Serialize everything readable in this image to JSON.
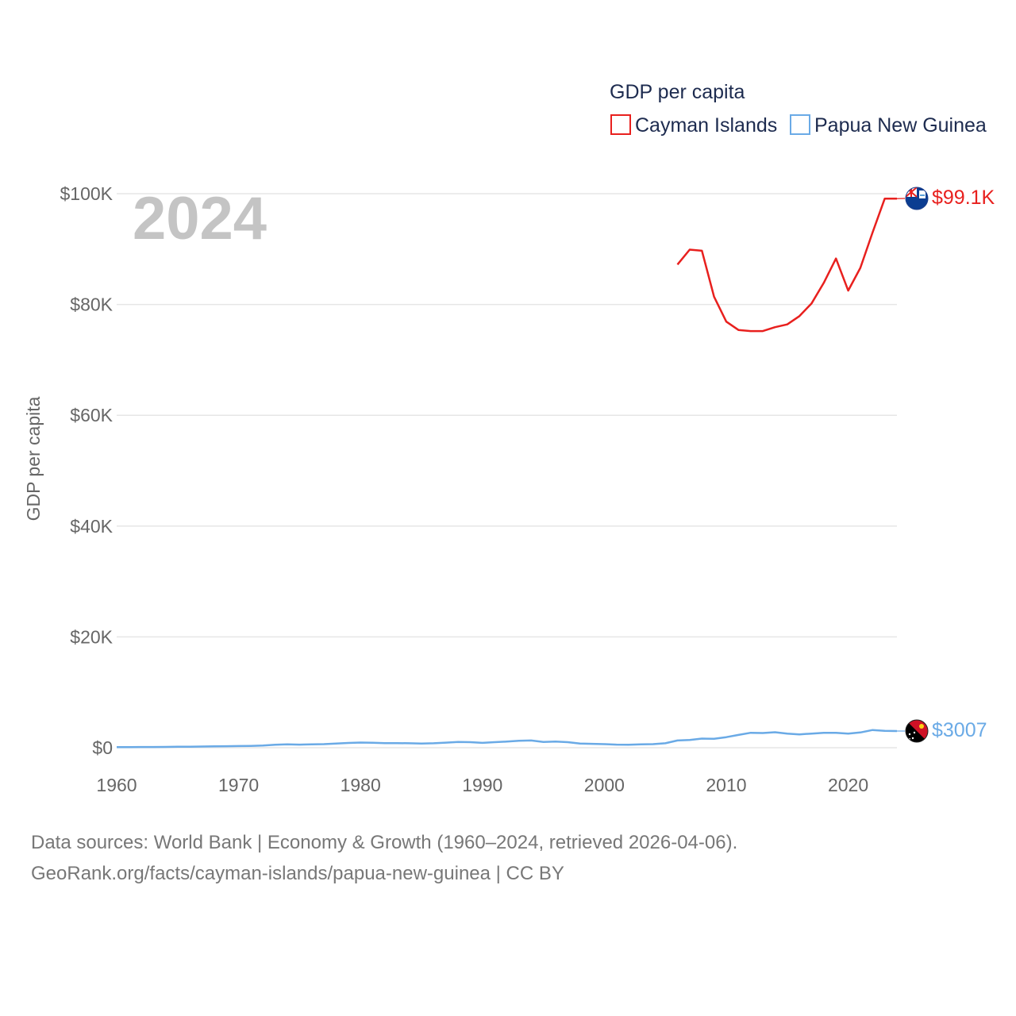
{
  "chart_data": {
    "type": "line",
    "legend_title": "GDP per capita",
    "ylabel": "GDP per capita",
    "xlabel": "",
    "year_label": "2024",
    "xlim": [
      1960,
      2024
    ],
    "ylim": [
      0,
      100000
    ],
    "x_ticks": [
      1960,
      1970,
      1980,
      1990,
      2000,
      2010,
      2020
    ],
    "y_ticks": [
      {
        "value": 0,
        "label": "$0"
      },
      {
        "value": 20000,
        "label": "$20K"
      },
      {
        "value": 40000,
        "label": "$40K"
      },
      {
        "value": 60000,
        "label": "$60K"
      },
      {
        "value": 80000,
        "label": "$80K"
      },
      {
        "value": 100000,
        "label": "$100K"
      }
    ],
    "series": [
      {
        "name": "Cayman Islands",
        "color": "#e8201e",
        "flag_icon": "cayman-islands-flag-icon",
        "end_label": "$99.1K",
        "x": [
          2006,
          2007,
          2008,
          2009,
          2010,
          2011,
          2012,
          2013,
          2014,
          2015,
          2016,
          2017,
          2018,
          2019,
          2020,
          2021,
          2022,
          2023,
          2024
        ],
        "values": [
          87200,
          89900,
          89700,
          81400,
          76900,
          75400,
          75200,
          75200,
          75900,
          76400,
          77900,
          80200,
          83900,
          88300,
          82500,
          86600,
          93000,
          99100,
          99100
        ]
      },
      {
        "name": "Papua New Guinea",
        "color": "#6aaae6",
        "flag_icon": "papua-new-guinea-flag-icon",
        "end_label": "$3007",
        "x": [
          1960,
          1961,
          1962,
          1963,
          1964,
          1965,
          1966,
          1967,
          1968,
          1969,
          1970,
          1971,
          1972,
          1973,
          1974,
          1975,
          1976,
          1977,
          1978,
          1979,
          1980,
          1981,
          1982,
          1983,
          1984,
          1985,
          1986,
          1987,
          1988,
          1989,
          1990,
          1991,
          1992,
          1993,
          1994,
          1995,
          1996,
          1997,
          1998,
          1999,
          2000,
          2001,
          2002,
          2003,
          2004,
          2005,
          2006,
          2007,
          2008,
          2009,
          2010,
          2011,
          2012,
          2013,
          2014,
          2015,
          2016,
          2017,
          2018,
          2019,
          2020,
          2021,
          2022,
          2023,
          2024
        ],
        "values": [
          110,
          115,
          125,
          135,
          150,
          165,
          185,
          210,
          240,
          270,
          300,
          330,
          380,
          530,
          600,
          560,
          600,
          650,
          740,
          860,
          930,
          900,
          820,
          830,
          800,
          760,
          800,
          920,
          1050,
          1000,
          880,
          1000,
          1100,
          1250,
          1300,
          1050,
          1100,
          1000,
          750,
          700,
          650,
          560,
          530,
          600,
          650,
          800,
          1300,
          1400,
          1650,
          1600,
          1900,
          2300,
          2700,
          2650,
          2800,
          2550,
          2400,
          2550,
          2700,
          2700,
          2550,
          2750,
          3200,
          3050,
          3007
        ]
      }
    ]
  },
  "footer": {
    "line1": "Data sources: World Bank | Economy & Growth (1960–2024, retrieved 2026-04-06).",
    "line2": "GeoRank.org/facts/cayman-islands/papua-new-guinea | CC BY"
  }
}
